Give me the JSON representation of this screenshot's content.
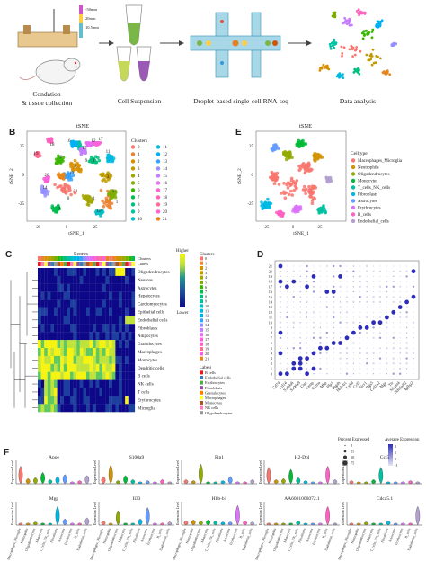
{
  "panel_a": {
    "labels": [
      "A"
    ],
    "depths": [
      "-50mm",
      "20mm",
      "10.5mm"
    ],
    "steps": [
      {
        "name": "step-condition",
        "text": "Condation"
      },
      {
        "name": "step-collection",
        "text": "& tissue collection"
      },
      {
        "name": "step-suspension",
        "text": "Cell Suspension"
      },
      {
        "name": "step-droplet",
        "text": "Droplet-based single-cell RNA-seq"
      },
      {
        "name": "step-analysis",
        "text": "Data analysis"
      }
    ]
  },
  "panel_b": {
    "letter": "B",
    "title": "tSNE",
    "xlabel": "tSNE_1",
    "ylabel": "tSNE_2",
    "xticks": [
      "-25",
      "0",
      "25"
    ],
    "yticks": [
      "25",
      "0",
      "-25"
    ],
    "legend_title": "Clusters",
    "clusters": [
      {
        "id": "0",
        "color": "#f8766d"
      },
      {
        "id": "1",
        "color": "#ea8331"
      },
      {
        "id": "2",
        "color": "#d89000"
      },
      {
        "id": "3",
        "color": "#c09b00"
      },
      {
        "id": "4",
        "color": "#a3a500"
      },
      {
        "id": "5",
        "color": "#7cae00"
      },
      {
        "id": "6",
        "color": "#39b600"
      },
      {
        "id": "7",
        "color": "#00bb4e"
      },
      {
        "id": "8",
        "color": "#00bf7d"
      },
      {
        "id": "9",
        "color": "#00c1a3"
      },
      {
        "id": "10",
        "color": "#00bfc4"
      },
      {
        "id": "11",
        "color": "#00bae0"
      },
      {
        "id": "12",
        "color": "#00b0f6"
      },
      {
        "id": "13",
        "color": "#35a2ff"
      },
      {
        "id": "14",
        "color": "#9590ff"
      },
      {
        "id": "15",
        "color": "#c77cff"
      },
      {
        "id": "16",
        "color": "#e76bf3"
      },
      {
        "id": "17",
        "color": "#fa62db"
      },
      {
        "id": "18",
        "color": "#ff62bc"
      },
      {
        "id": "19",
        "color": "#ff6c91"
      },
      {
        "id": "20",
        "color": "#fb61d7"
      },
      {
        "id": "21",
        "color": "#e7861b"
      }
    ],
    "map_labels": [
      "18",
      "16",
      "12",
      "17",
      "15",
      "11",
      "19",
      "6",
      "20",
      "9",
      "13",
      "14",
      "2",
      "8",
      "10",
      "4",
      "21",
      "3",
      "0",
      "5",
      "1",
      "7"
    ]
  },
  "panel_e": {
    "letter": "E",
    "title": "tSNE",
    "xlabel": "tSNE_1",
    "ylabel": "tSNE_2",
    "xticks": [
      "-25",
      "0",
      "25"
    ],
    "yticks": [
      "25",
      "0",
      "-25"
    ],
    "legend_title": "Celltype",
    "celltypes": [
      {
        "name": "Macrophages_Microglia",
        "color": "#f8766d"
      },
      {
        "name": "Neutrophils",
        "color": "#d39200"
      },
      {
        "name": "Oligodendrocytes",
        "color": "#93aa00"
      },
      {
        "name": "Monocytes",
        "color": "#00ba38"
      },
      {
        "name": "T_cells_NK_cells",
        "color": "#00c19f"
      },
      {
        "name": "Fibroblasts",
        "color": "#00b9e3"
      },
      {
        "name": "Astrocytes",
        "color": "#619cff"
      },
      {
        "name": "Erythrocytes",
        "color": "#db72fb"
      },
      {
        "name": "B_cells",
        "color": "#ff61c3"
      },
      {
        "name": "Endothelial_cells",
        "color": "#b3a0d0"
      }
    ]
  },
  "panel_c": {
    "letter": "C",
    "title": "Scores",
    "top_labels": [
      "Clusters",
      "Labels"
    ],
    "cell_types": [
      "Oligodendrocytes",
      "Neurons",
      "Astrocytes",
      "Hepatocytes",
      "Cardiomyocytes",
      "Epithelial cells",
      "Endothelial cells",
      "Fibroblasts",
      "Adipocytes",
      "Granulocytes",
      "Macrophages",
      "Monocytes",
      "Dendritic cells",
      "B cells",
      "NK cells",
      "T cells",
      "Erythrocytes",
      "Microglia"
    ],
    "scale_high": "Higher",
    "scale_low": "Lower",
    "clusters_title": "Clusters",
    "cluster_ids": [
      "0",
      "1",
      "2",
      "3",
      "4",
      "5",
      "6",
      "7",
      "8",
      "9",
      "10",
      "11",
      "12",
      "13",
      "14",
      "15",
      "16",
      "17",
      "18",
      "19",
      "20",
      "21"
    ],
    "cluster_colors": [
      "#f8766d",
      "#ea8331",
      "#d89000",
      "#c09b00",
      "#a3a500",
      "#7cae00",
      "#39b600",
      "#00bb4e",
      "#00bf7d",
      "#00c1a3",
      "#00bfc4",
      "#00bae0",
      "#00b0f6",
      "#35a2ff",
      "#9590ff",
      "#c77cff",
      "#e76bf3",
      "#fa62db",
      "#ff62bc",
      "#ff6c91",
      "#fb61d7",
      "#e7861b"
    ],
    "labels_title": "Labels",
    "label_items": [
      {
        "name": "B cells",
        "color": "#e41a1c"
      },
      {
        "name": "Endothelial cells",
        "color": "#377eb8"
      },
      {
        "name": "Erythrocytes",
        "color": "#4daf4a"
      },
      {
        "name": "Fibroblasts",
        "color": "#984ea3"
      },
      {
        "name": "Granulocytes",
        "color": "#ff7f00"
      },
      {
        "name": "Macrophages",
        "color": "#ffff33"
      },
      {
        "name": "Monocytes",
        "color": "#a65628"
      },
      {
        "name": "NK cells",
        "color": "#f781bf"
      },
      {
        "name": "Oligodendrocytes",
        "color": "#999999"
      }
    ],
    "colorbar": [
      "#0d0887",
      "#2c0594",
      "#1f4e9e",
      "#21918c",
      "#5ec962",
      "#c0e33c",
      "#fde725",
      "#f5f30f"
    ]
  },
  "panel_d": {
    "letter": "D",
    "rows": [
      "21",
      "20",
      "19",
      "18",
      "17",
      "16",
      "15",
      "14",
      "13",
      "12",
      "11",
      "10",
      "9",
      "8",
      "7",
      "6",
      "5",
      "4",
      "3",
      "2",
      "1",
      "0"
    ],
    "genes": [
      "Cd74",
      "Cd14",
      "S100a6",
      "S100a9",
      "Ctss",
      "Camp",
      "Gzma",
      "Mbp",
      "Plp1",
      "Ptgds",
      "Hbb-b1",
      "Ly6d",
      "Ccl5",
      "Ncr1",
      "Rgs5",
      "Col1a2",
      "Mgp",
      "Ttr",
      "Nkain4",
      "Ndufa4l2",
      "Igfbp2"
    ],
    "pct_title": "Percent Expressed",
    "pct_values": [
      "0",
      "25",
      "50",
      "75"
    ],
    "avg_title": "Average Expression",
    "avg_values": [
      "2",
      "1",
      "0",
      "-1"
    ]
  },
  "panel_f": {
    "letter": "F",
    "ylabel": "Expression Level",
    "row1_genes": [
      "Apoe",
      "S100a9",
      "Plp1",
      "H2-Dbl",
      "Ccl5"
    ],
    "row2_genes": [
      "Mgp",
      "Il33",
      "Hbb-b1",
      "AA6001006072.1",
      "Cdca5.1"
    ],
    "celltypes": [
      "Macrophages_Microglia",
      "Neutrophils",
      "Oligodendrocytes",
      "Monocytes",
      "T_cells_NK_cells",
      "Fibroblasts",
      "Astrocytes",
      "Erythrocytes",
      "B_cells",
      "Endothelial_cells"
    ],
    "colors": [
      "#f8766d",
      "#d39200",
      "#93aa00",
      "#00ba38",
      "#00c19f",
      "#00b9e3",
      "#619cff",
      "#db72fb",
      "#ff61c3",
      "#b3a0d0"
    ],
    "violin_heights": {
      "Apoe": [
        0.85,
        0.25,
        0.3,
        0.55,
        0.2,
        0.35,
        0.45,
        0.1,
        0.15,
        0.4
      ],
      "S100a9": [
        0.35,
        0.9,
        0.15,
        0.4,
        0.2,
        0.1,
        0.15,
        0.1,
        0.2,
        0.1
      ],
      "Plp1": [
        0.2,
        0.15,
        0.95,
        0.1,
        0.1,
        0.15,
        0.35,
        0.1,
        0.1,
        0.2
      ],
      "H2-Dbl": [
        0.8,
        0.2,
        0.25,
        0.7,
        0.3,
        0.15,
        0.1,
        0.1,
        0.85,
        0.2
      ],
      "Ccl5": [
        0.15,
        0.1,
        0.1,
        0.2,
        0.8,
        0.1,
        0.1,
        0.1,
        0.15,
        0.1
      ],
      "Mgp": [
        0.1,
        0.1,
        0.15,
        0.1,
        0.1,
        0.9,
        0.3,
        0.1,
        0.1,
        0.35
      ],
      "Il33": [
        0.2,
        0.1,
        0.7,
        0.1,
        0.1,
        0.3,
        0.85,
        0.1,
        0.1,
        0.15
      ],
      "Hbb-b1": [
        0.2,
        0.25,
        0.2,
        0.25,
        0.2,
        0.15,
        0.15,
        0.95,
        0.2,
        0.15
      ],
      "AA6001006072.1": [
        0.1,
        0.1,
        0.1,
        0.1,
        0.2,
        0.1,
        0.1,
        0.1,
        0.9,
        0.1
      ],
      "Cdca5.1": [
        0.1,
        0.1,
        0.15,
        0.1,
        0.1,
        0.2,
        0.1,
        0.1,
        0.1,
        0.9
      ]
    }
  }
}
